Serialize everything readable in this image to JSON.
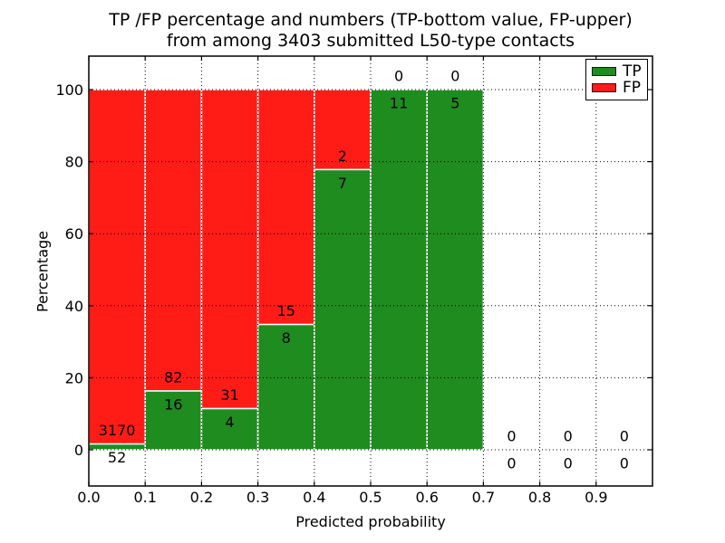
{
  "figure": {
    "title_line1": "TP /FP percentage and numbers (TP-bottom value, FP-upper)",
    "title_line2": "from among 3403 submitted L50-type contacts",
    "xlabel": "Predicted probability",
    "ylabel": "Percentage"
  },
  "legend": {
    "position": "upper right",
    "items": [
      {
        "label": "TP",
        "color": "#1e8c1e"
      },
      {
        "label": "FP",
        "color": "#ff1c17"
      }
    ]
  },
  "chart_data": {
    "type": "bar",
    "stacked": true,
    "normalized_to_percent": true,
    "title": "TP /FP percentage and numbers (TP-bottom value, FP-upper) from among 3403 submitted L50-type contacts",
    "xlabel": "Predicted probability",
    "ylabel": "Percentage",
    "total_contacts": 3403,
    "categories": [
      "0.0-0.1",
      "0.1-0.2",
      "0.2-0.3",
      "0.3-0.4",
      "0.4-0.5",
      "0.5-0.6",
      "0.6-0.7",
      "0.7-0.8",
      "0.8-0.9",
      "0.9-1.0"
    ],
    "bin_width": 0.1,
    "series": [
      {
        "name": "TP",
        "color": "#1e8c1e",
        "counts": [
          52,
          16,
          4,
          8,
          7,
          11,
          5,
          0,
          0,
          0
        ],
        "pct_of_bin": [
          1.61,
          16.33,
          11.43,
          34.78,
          77.78,
          100.0,
          100.0,
          0,
          0,
          0
        ]
      },
      {
        "name": "FP",
        "color": "#ff1c17",
        "counts": [
          3170,
          82,
          31,
          15,
          2,
          0,
          0,
          0,
          0,
          0
        ],
        "pct_of_bin": [
          98.39,
          83.67,
          88.57,
          65.22,
          22.22,
          0,
          0,
          0,
          0,
          0
        ]
      }
    ],
    "x_tick_labels": [
      "0.0",
      "0.1",
      "0.2",
      "0.3",
      "0.4",
      "0.5",
      "0.6",
      "0.7",
      "0.8",
      "0.9"
    ],
    "y_ticks": [
      0,
      20,
      40,
      60,
      80,
      100
    ],
    "xlim": [
      0.0,
      1.0
    ],
    "ylim": [
      -10,
      110
    ],
    "grid": "dotted, both axes, drawn over bars",
    "bar_edge_color": "#ffffff",
    "label_note": "per bin: FP count above TP/FP boundary, TP count below boundary"
  }
}
